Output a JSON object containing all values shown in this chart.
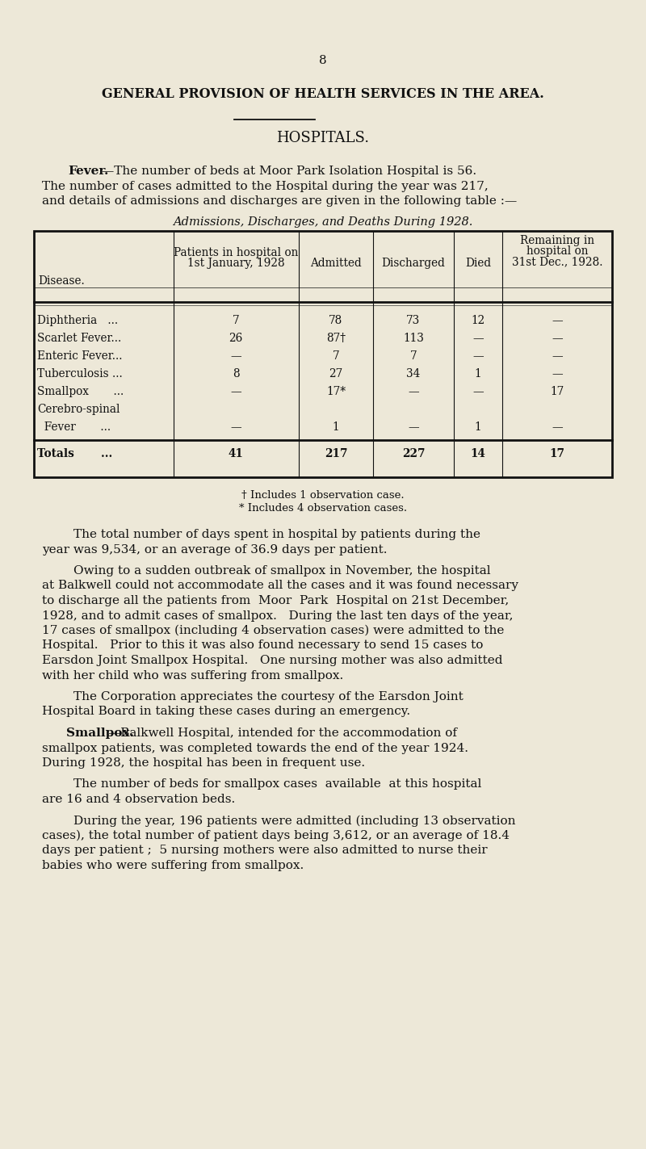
{
  "bg_color": "#ede8d8",
  "page_number": "8",
  "main_title": "GENERAL PROVISION OF HEALTH SERVICES IN THE AREA.",
  "section_title": "HOSPITALS.",
  "fever_bold": "Fever.",
  "fever_rest1": "—The number of beds at Moor Park Isolation Hospital is 56.",
  "fever_line2": "The number of cases admitted to the Hospital during the year was 217,",
  "fever_line3": "and details of admissions and discharges are given in the following table :—",
  "table_title": "Admissions, Discharges, and Deaths During 1928.",
  "col_headers": [
    "Disease.",
    "Patients in hospital on\n1st January, 1928",
    "Admitted",
    "Discharged",
    "Died",
    "Remaining in\nhospital on\n31st Dec., 1928."
  ],
  "table_rows": [
    [
      "Diphtheria   ...",
      "7",
      "78",
      "73",
      "12",
      "—"
    ],
    [
      "Scarlet Fever...",
      "26",
      "87†",
      "113",
      "—",
      "—"
    ],
    [
      "Enteric Fever...",
      "—",
      "7",
      "7",
      "—",
      "—"
    ],
    [
      "Tuberculosis ...",
      "8",
      "27",
      "34",
      "1",
      "—"
    ],
    [
      "Smallpox       ...",
      "—",
      "17*",
      "—",
      "—",
      "17"
    ]
  ],
  "csf_line1": "Cerebro-spinal",
  "csf_line2": "  Fever       ...",
  "csf_data": [
    "—",
    "1",
    "—",
    "1",
    "—"
  ],
  "totals": [
    "Totals       ...",
    "41",
    "217",
    "227",
    "14",
    "17"
  ],
  "footnotes": [
    "† Includes 1 observation case.",
    "* Includes 4 observation cases."
  ],
  "para2_indent": "        The total number of days spent in hospital by patients during the",
  "para2_rest": "year was 9,534, or an average of 36.9 days per patient.",
  "para3_indent": "        Owing to a sudden outbreak of smallpox in November, the hospital",
  "para3_lines": [
    "at Balkwell could not accommodate all the cases and it was found necessary",
    "to discharge all the patients from  Moor  Park  Hospital on 21st December,",
    "1928, and to admit cases of smallpox.   During the last ten days of the year,",
    "17 cases of smallpox (including 4 observation cases) were admitted to the",
    "Hospital.   Prior to this it was also found necessary to send 15 cases to",
    "Earsdon Joint Smallpox Hospital.   One nursing mother was also admitted",
    "with her child who was suffering from smallpox."
  ],
  "para4_indent": "        The Corporation appreciates the courtesy of the Earsdon Joint",
  "para4_rest": "Hospital Board in taking these cases during an emergency.",
  "smallpox_bold": "Smallpox.",
  "para5_rest1": "—Balkwell Hospital, intended for the accommodation of",
  "para5_lines": [
    "smallpox patients, was completed towards the end of the year 1924.",
    "During 1928, the hospital has been in frequent use."
  ],
  "para6_indent": "        The number of beds for smallpox cases  available  at this hospital",
  "para6_rest": "are 16 and 4 observation beds.",
  "para7_indent": "        During the year, 196 patients were admitted (including 13 observation",
  "para7_lines": [
    "cases), the total number of patient days being 3,612, or an average of 18.4",
    "days per patient ;  5 nursing mothers were also admitted to nurse their",
    "babies who were suffering from smallpox."
  ]
}
